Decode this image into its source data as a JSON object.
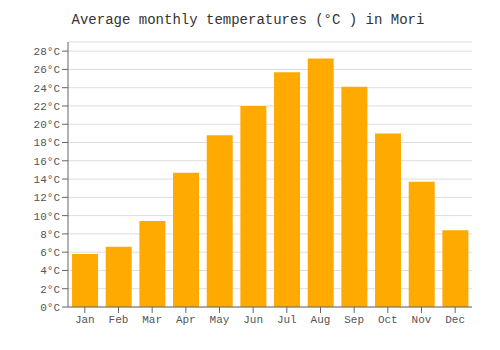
{
  "chart_data": {
    "type": "bar",
    "title": "Average monthly temperatures (°C ) in Mori",
    "categories": [
      "Jan",
      "Feb",
      "Mar",
      "Apr",
      "May",
      "Jun",
      "Jul",
      "Aug",
      "Sep",
      "Oct",
      "Nov",
      "Dec"
    ],
    "values": [
      5.8,
      6.6,
      9.4,
      14.7,
      18.8,
      22.0,
      25.7,
      27.2,
      24.1,
      19.0,
      13.7,
      8.4
    ],
    "color": "#FFAA00",
    "ylim": [
      0,
      29
    ],
    "yticks": [
      {
        "value": 0,
        "label": "0°C"
      },
      {
        "value": 2,
        "label": "2°C"
      },
      {
        "value": 4,
        "label": "4°C"
      },
      {
        "value": 6,
        "label": "6°C"
      },
      {
        "value": 8,
        "label": "8°C"
      },
      {
        "value": 10,
        "label": "10°C"
      },
      {
        "value": 12,
        "label": "12°C"
      },
      {
        "value": 14,
        "label": "14°C"
      },
      {
        "value": 16,
        "label": "16°C"
      },
      {
        "value": 18,
        "label": "18°C"
      },
      {
        "value": 20,
        "label": "20°C"
      },
      {
        "value": 22,
        "label": "22°C"
      },
      {
        "value": 24,
        "label": "24°C"
      },
      {
        "value": 26,
        "label": "26°C"
      },
      {
        "value": 28,
        "label": "28°C"
      }
    ],
    "grid": true
  }
}
